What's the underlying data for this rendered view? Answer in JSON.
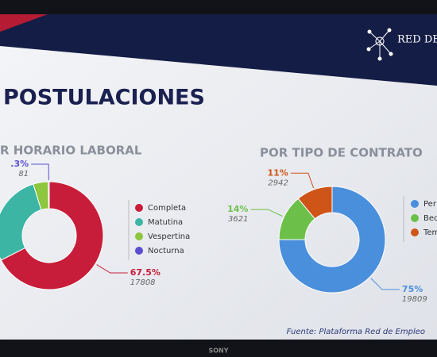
{
  "header": {
    "brand": "RED DE E",
    "title": "POSTULACIONES",
    "source": "Fuente: Plataforma Red de Empleo",
    "bezel": "SONY"
  },
  "chart_data": [
    {
      "type": "donut",
      "title": "R HORARIO LABORAL",
      "categories": [
        "Completa",
        "Matutina",
        "Vespertina",
        "Nocturna"
      ],
      "values": [
        67.5,
        27.7,
        4.5,
        0.3
      ],
      "value_labels": [
        "67.5%",
        null,
        null,
        ".3%"
      ],
      "counts": [
        17808,
        null,
        null,
        81
      ],
      "colors": [
        "#c81d3a",
        "#3db5a5",
        "#8dc63f",
        "#5b4fd0"
      ]
    },
    {
      "type": "donut",
      "title": "POR TIPO DE CONTRATO",
      "categories": [
        "Per",
        "Bec",
        "Tem"
      ],
      "values": [
        75,
        14,
        11
      ],
      "value_labels": [
        "75%",
        "14%",
        "11%"
      ],
      "counts": [
        19809,
        3621,
        2942
      ],
      "colors": [
        "#4a8fdc",
        "#6cc04a",
        "#cf5418"
      ]
    }
  ]
}
